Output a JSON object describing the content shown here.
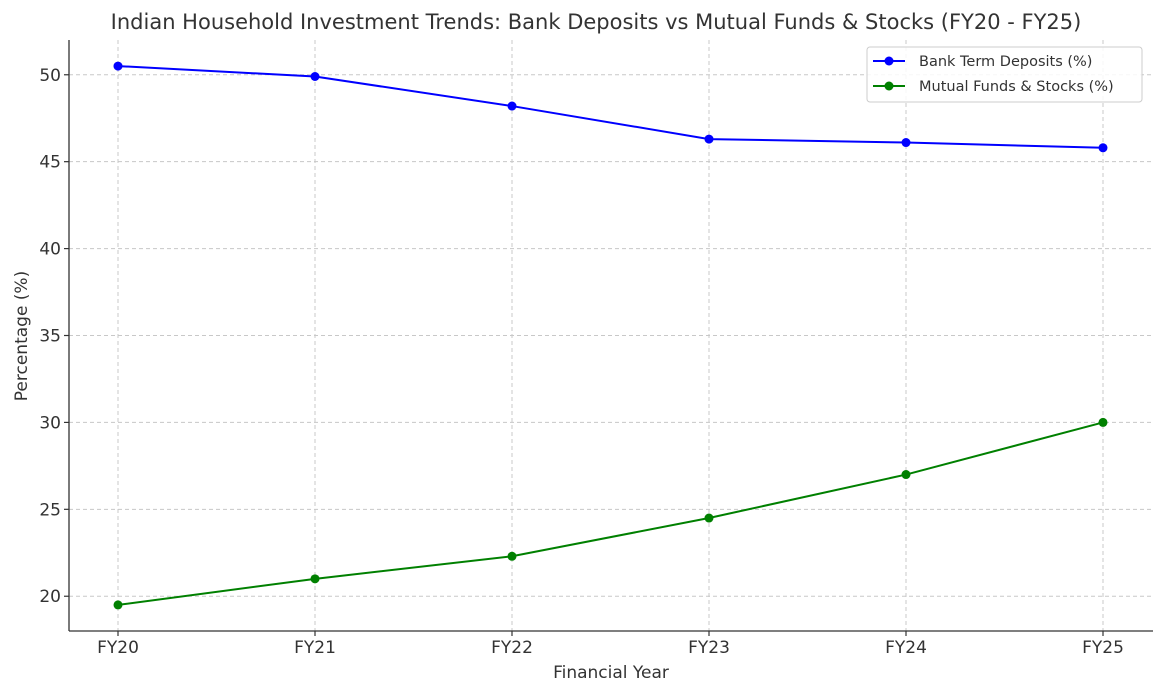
{
  "chart_data": {
    "type": "line",
    "title": "Indian Household Investment Trends: Bank Deposits vs Mutual Funds & Stocks (FY20 - FY25)",
    "xlabel": "Financial Year",
    "ylabel": "Percentage (%)",
    "categories": [
      "FY20",
      "FY21",
      "FY22",
      "FY23",
      "FY24",
      "FY25"
    ],
    "ylim": [
      18,
      52
    ],
    "yticks": [
      20,
      25,
      30,
      35,
      40,
      45,
      50
    ],
    "grid": true,
    "legend_position": "top-right",
    "series": [
      {
        "name": "Bank Term Deposits (%)",
        "color": "#0000ff",
        "marker": "circle",
        "values": [
          50.5,
          49.9,
          48.2,
          46.3,
          46.1,
          45.8
        ]
      },
      {
        "name": "Mutual Funds & Stocks (%)",
        "color": "#008000",
        "marker": "circle",
        "values": [
          19.5,
          21.0,
          22.3,
          24.5,
          27.0,
          30.0
        ]
      }
    ]
  }
}
